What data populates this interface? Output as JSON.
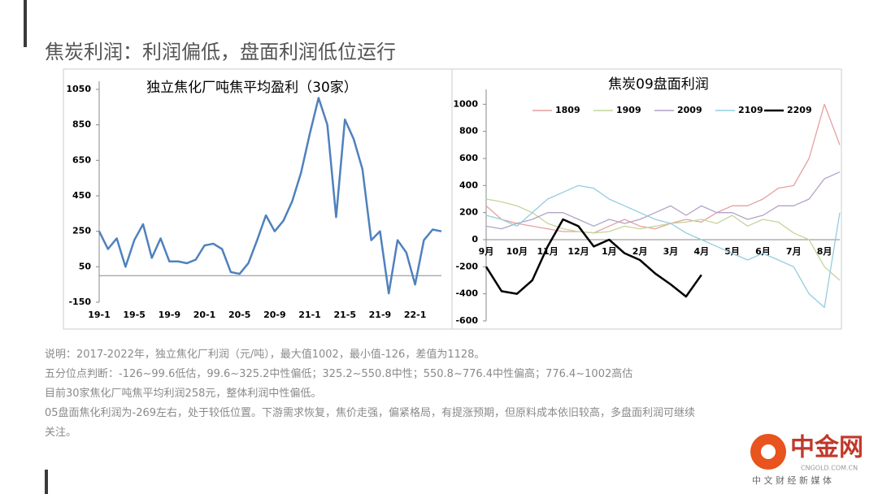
{
  "slide": {
    "title": "焦炭利润：利润偏低，盘面利润低位运行",
    "notes": [
      "说明：2017-2022年，独立焦化厂利润（元/吨），最大值1002，最小值-126，差值为1128。",
      "五分位点判断：-126~99.6低估，99.6~325.2中性偏低；325.2~550.8中性；550.8~776.4中性偏高；776.4~1002高估",
      "目前30家焦化厂吨焦平均利润258元，整体利润中性偏低。",
      "05盘面焦化利润为-269左右，处于较低位置。下游需求恢复，焦价走强，偏紧格局，有提涨预期，但原料成本依旧较高，多盘面利润可继续",
      "关注。"
    ]
  },
  "watermark": {
    "name": "中金网",
    "site": "CNGOLD.COM.CN",
    "slogan": "中 文 财 经 新 媒 体"
  },
  "chart_data": [
    {
      "type": "line",
      "title": "独立焦化厂吨焦平均盈利（30家）",
      "color": "#4f81bd",
      "categories": [
        "19-1",
        null,
        null,
        null,
        "19-5",
        null,
        null,
        null,
        "19-9",
        null,
        null,
        null,
        "20-1",
        null,
        null,
        null,
        "20-5",
        null,
        null,
        null,
        "20-9",
        null,
        null,
        null,
        "21-1",
        null,
        null,
        null,
        "21-5",
        null,
        null,
        null,
        "21-9",
        null,
        null,
        null,
        "22-1",
        null,
        null,
        null
      ],
      "values": [
        250,
        150,
        210,
        50,
        200,
        290,
        100,
        210,
        80,
        80,
        70,
        90,
        170,
        180,
        150,
        20,
        10,
        70,
        200,
        340,
        250,
        310,
        420,
        580,
        800,
        1002,
        850,
        330,
        880,
        770,
        600,
        200,
        250,
        -100,
        200,
        130,
        -50,
        200,
        260,
        250
      ],
      "ylim": [
        -150,
        1050
      ],
      "yticks": [
        -150,
        50,
        250,
        450,
        650,
        850,
        1050
      ]
    },
    {
      "type": "line",
      "title": "焦炭09盘面利润",
      "categories": [
        "9月",
        null,
        "10月",
        null,
        "11月",
        null,
        "12月",
        null,
        "1月",
        null,
        "2月",
        null,
        "3月",
        null,
        "4月",
        null,
        "5月",
        null,
        "6月",
        null,
        "7月",
        null,
        "8月",
        null
      ],
      "series": [
        {
          "name": "1809",
          "color": "#e6a0a0",
          "values": [
            250,
            150,
            120,
            100,
            80,
            60,
            60,
            50,
            100,
            150,
            100,
            80,
            120,
            150,
            130,
            200,
            250,
            250,
            300,
            380,
            400,
            600,
            1000,
            700
          ]
        },
        {
          "name": "1909",
          "color": "#c3d69b",
          "values": [
            300,
            280,
            250,
            200,
            120,
            80,
            60,
            50,
            60,
            100,
            80,
            100,
            120,
            130,
            150,
            120,
            180,
            100,
            150,
            130,
            50,
            0,
            -200,
            -300
          ]
        },
        {
          "name": "2009",
          "color": "#b3a2c7",
          "values": [
            100,
            80,
            120,
            150,
            200,
            200,
            150,
            100,
            150,
            120,
            150,
            200,
            250,
            180,
            250,
            200,
            200,
            150,
            180,
            250,
            250,
            300,
            450,
            500
          ]
        },
        {
          "name": "2109",
          "color": "#93cddd",
          "values": [
            180,
            150,
            100,
            200,
            300,
            350,
            400,
            380,
            300,
            250,
            200,
            150,
            120,
            50,
            0,
            -50,
            -100,
            -150,
            -100,
            -150,
            -200,
            -400,
            -500,
            200
          ]
        },
        {
          "name": "2209",
          "color": "#000000",
          "values": [
            -200,
            -380,
            -400,
            -300,
            -50,
            150,
            100,
            -50,
            0,
            -100,
            -150,
            -250,
            -330,
            -420,
            -260,
            null,
            null,
            null,
            null,
            null,
            null,
            null,
            null,
            null
          ]
        }
      ],
      "ylim": [
        -600,
        1050
      ],
      "yticks": [
        -600,
        -400,
        -200,
        0,
        200,
        400,
        600,
        800,
        1000
      ]
    }
  ]
}
